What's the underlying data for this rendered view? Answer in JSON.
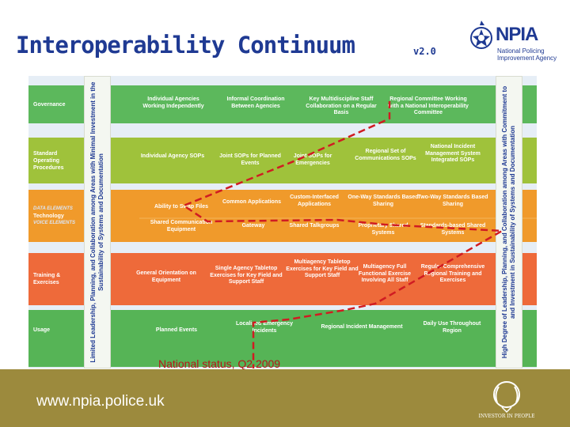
{
  "header": {
    "title": "Interoperability Continuum",
    "version": "v2.0"
  },
  "logo": {
    "org": "NPIA",
    "lines": [
      "National Policing",
      "Improvement Agency"
    ]
  },
  "continuum": {
    "left_axis": "Limited Leadership, Planning, and Collaboration among Areas with Minimal Investment in the Sustainability of Systems and Documentation",
    "right_axis": "High Degree of Leadership, Planning, and Collaboration among Areas with Commitment to and Investment in Sustainability of Systems and Documentation",
    "rows": [
      {
        "label": "Governance",
        "color": "#5cb85c",
        "cells": [
          "Individual Agencies Working Independently",
          "Informal Coordination Between Agencies",
          "Key Multidiscipline Staff Collaboration on a Regular Basis",
          "Regional Committee Working with a National Interoperability Committee"
        ]
      },
      {
        "label": "Standard Operating Procedures",
        "color": "#9fc23b",
        "cells": [
          "Individual Agency SOPs",
          "Joint SOPs for Planned Events",
          "Joint SOPs for Emergencies",
          "Regional Set of Communications SOPs",
          "National Incident Management System Integrated SOPs"
        ]
      },
      {
        "label": "Technology",
        "color": "#f09a2b",
        "sublabels": [
          "DATA ELEMENTS",
          "VOICE ELEMENTS"
        ],
        "data_cells": [
          "Ability to Swap Files",
          "Common Applications",
          "Custom-Interfaced Applications",
          "One-Way Standards Based Sharing",
          "Two-Way Standards Based Sharing"
        ],
        "voice_cells": [
          "Shared Communication Equipment",
          "Gateway",
          "Shared Talkgroups",
          "Proprietary Shared Systems",
          "Standards-based Shared Systems"
        ]
      },
      {
        "label": "Training & Exercises",
        "color": "#ee6a3a",
        "cells": [
          "General Orientation on Equipment",
          "Single Agency Tabletop Exercises for Key Field and Support Staff",
          "Multiagency Tabletop Exercises for Key Field and Support Staff",
          "Multiagency Full Functional Exercise Involving All Staff",
          "Regular Comprehensive Regional Training and Exercises"
        ]
      },
      {
        "label": "Usage",
        "color": "#56b456",
        "cells": [
          "Planned Events",
          "Localised Emergency Incidents",
          "Regional Incident Management",
          "Daily Use Throughout Region"
        ]
      }
    ]
  },
  "status": "National status, Q2 2009",
  "footer": {
    "url": "www.npia.police.uk",
    "badge": "INVESTOR IN PEOPLE"
  },
  "colors": {
    "title": "#1f3a93",
    "status_line": "#d01c22",
    "footer": "#9c8a3d"
  }
}
